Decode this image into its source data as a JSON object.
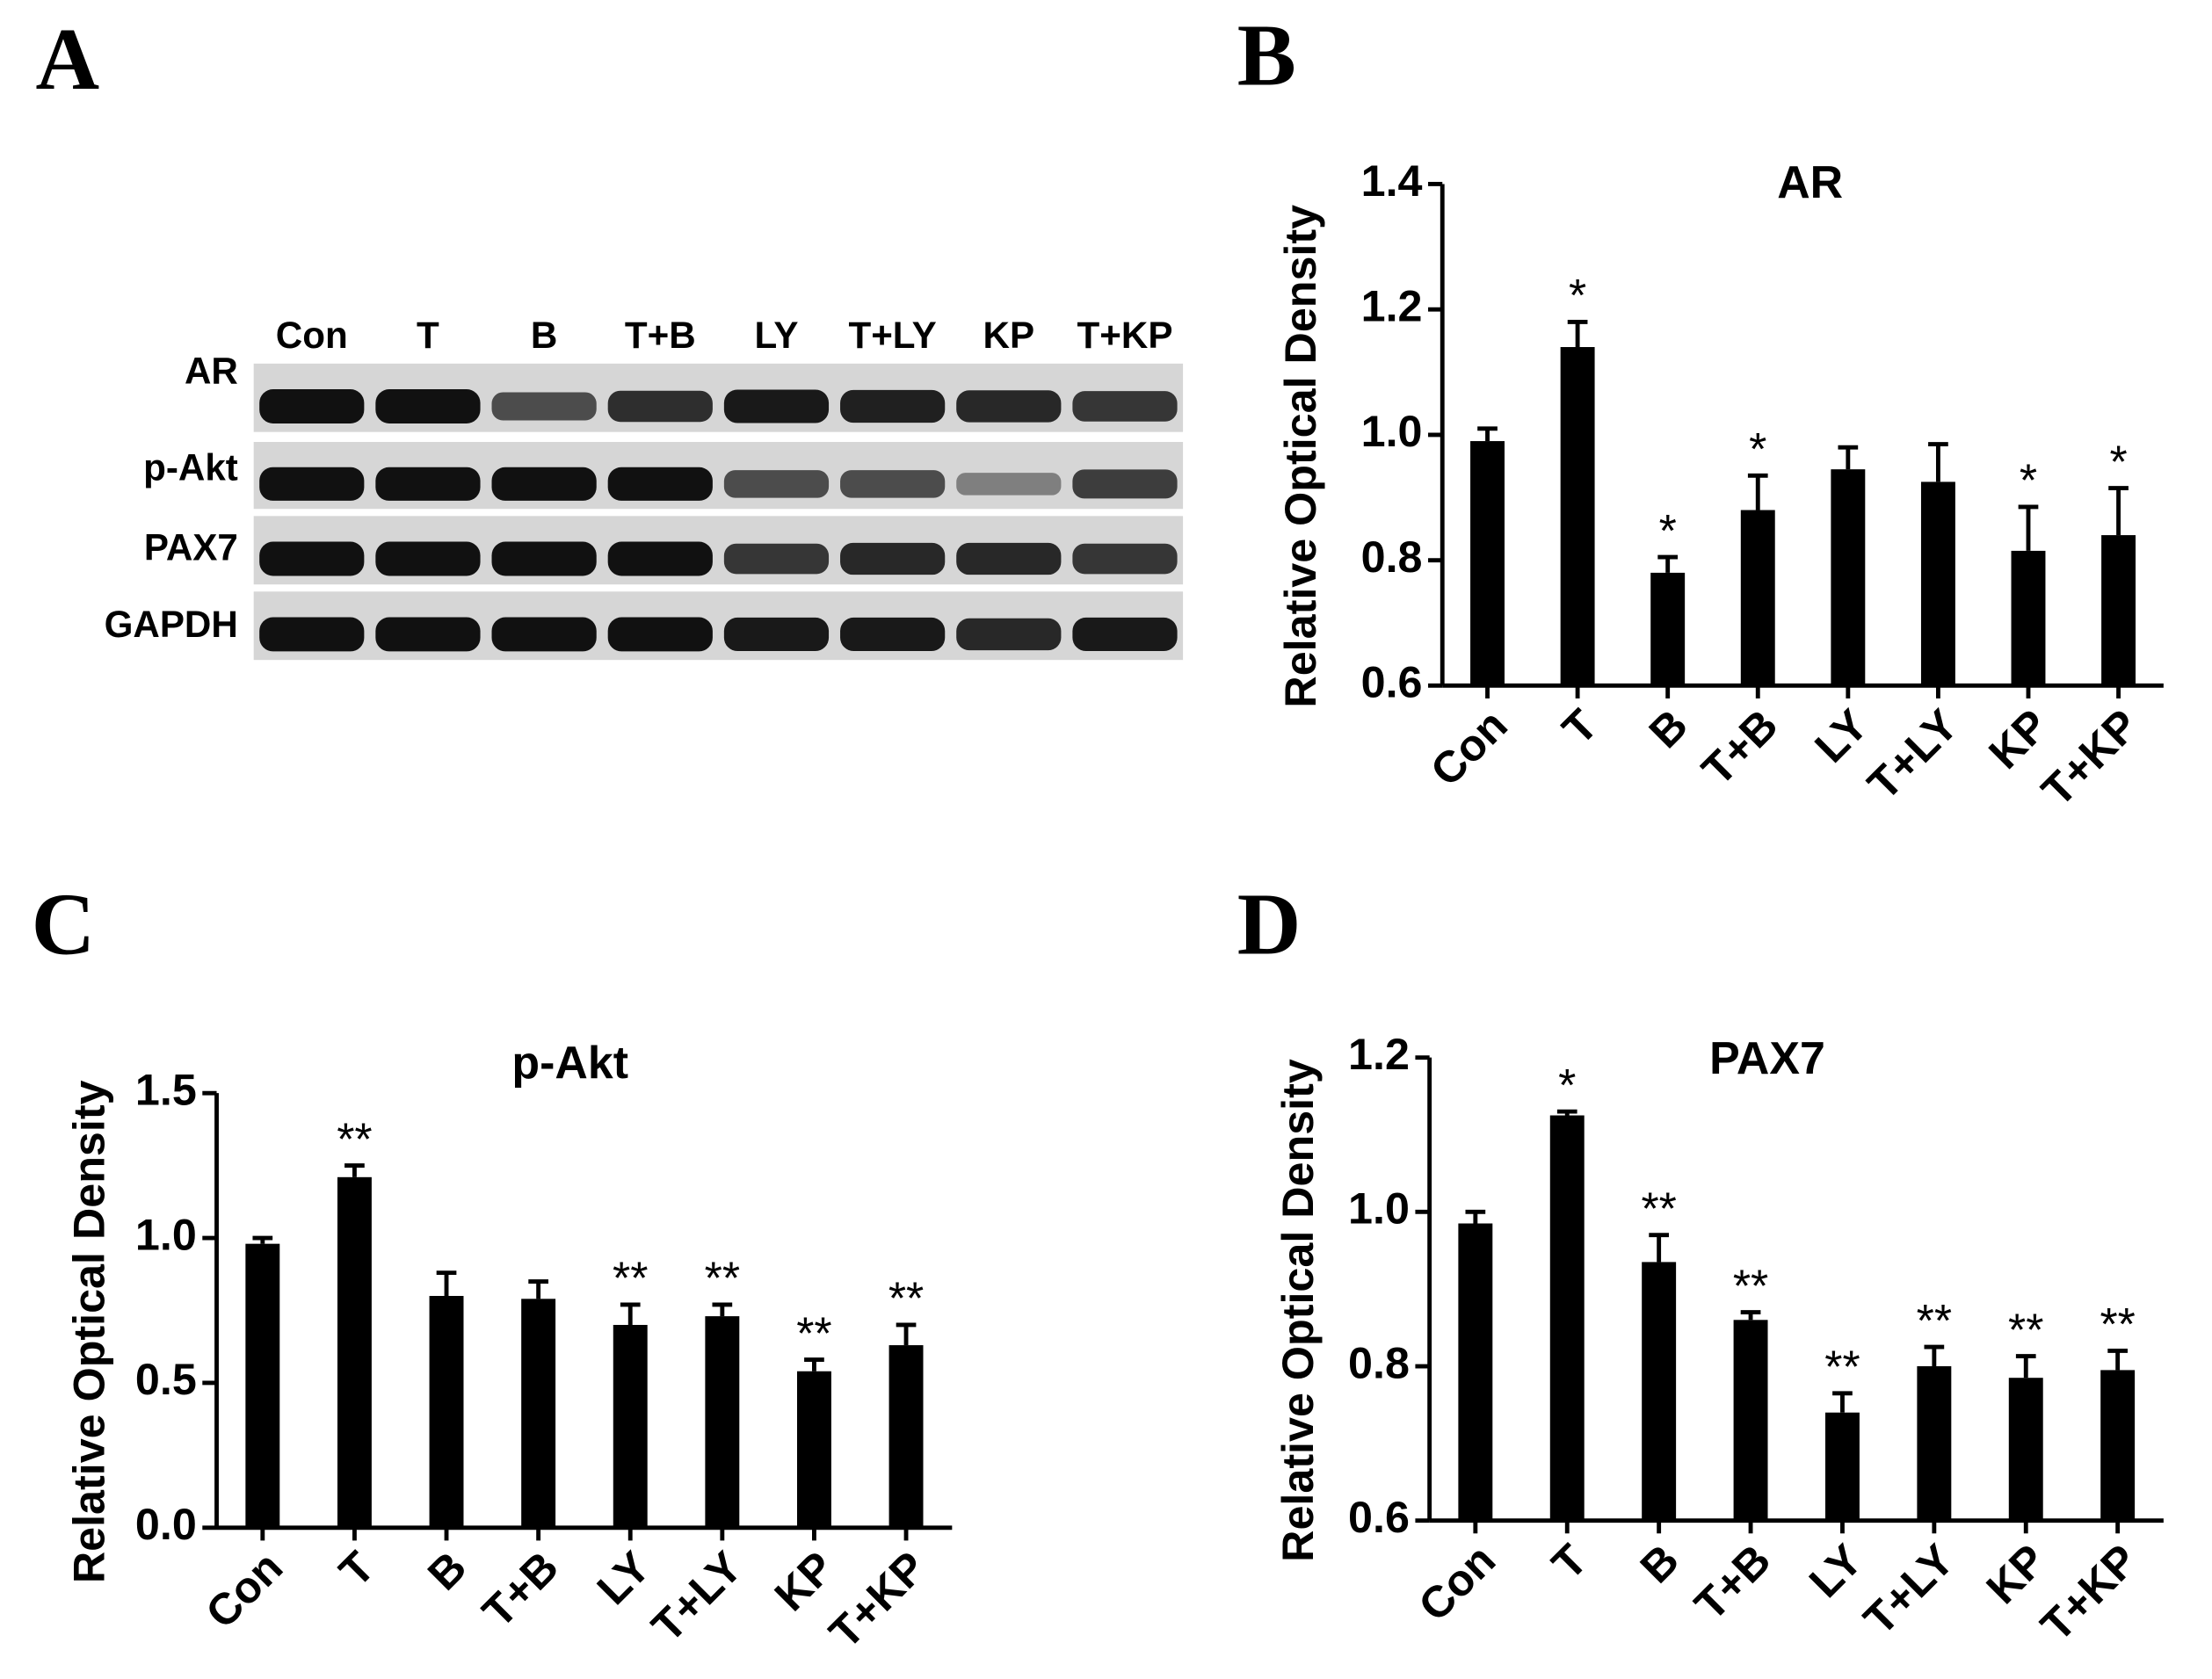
{
  "panels": [
    "A",
    "B",
    "C",
    "D"
  ],
  "blot": {
    "lanes": [
      "Con",
      "T",
      "B",
      "T+B",
      "LY",
      "T+LY",
      "KP",
      "T+KP"
    ],
    "proteins": [
      "AR",
      "p-Akt",
      "PAX7",
      "GAPDH"
    ]
  },
  "chart_data": [
    {
      "type": "bar",
      "title": "AR",
      "ylabel": "Relative Optical Density",
      "color": "#000000",
      "categories": [
        "Con",
        "T",
        "B",
        "T+B",
        "LY",
        "T+LY",
        "KP",
        "T+KP"
      ],
      "values": [
        0.99,
        1.14,
        0.78,
        0.88,
        0.945,
        0.925,
        0.815,
        0.84
      ],
      "errors": [
        0.02,
        0.04,
        0.025,
        0.055,
        0.035,
        0.06,
        0.07,
        0.075
      ],
      "annotations": [
        null,
        "*",
        "*",
        "*",
        null,
        null,
        "*",
        "*"
      ],
      "ylim": [
        0.6,
        1.4
      ],
      "yticks": [
        0.6,
        0.8,
        {
          "value": 1,
          "label": "1.0"
        },
        1.2,
        1.4
      ]
    },
    {
      "type": "bar",
      "title": "p-Akt",
      "ylabel": "Relative Optical Density",
      "color": "#000000",
      "categories": [
        "Con",
        "T",
        "B",
        "T+B",
        "LY",
        "T+LY",
        "KP",
        "T+KP"
      ],
      "values": [
        0.98,
        1.21,
        0.8,
        0.79,
        0.7,
        0.73,
        0.54,
        0.63
      ],
      "errors": [
        0.02,
        0.04,
        0.08,
        0.06,
        0.07,
        0.04,
        0.04,
        0.07
      ],
      "annotations": [
        null,
        "**",
        null,
        null,
        "**",
        "**",
        "**",
        "**"
      ],
      "ylim": [
        0,
        1.5
      ],
      "yticks": [
        {
          "value": 0,
          "label": "0.0"
        },
        0.5,
        {
          "value": 1,
          "label": "1.0"
        },
        1.5
      ]
    },
    {
      "type": "bar",
      "title": "PAX7",
      "ylabel": "Relative Optical Density",
      "color": "#000000",
      "categories": [
        "Con",
        "T",
        "B",
        "T+B",
        "LY",
        "T+LY",
        "KP",
        "T+KP"
      ],
      "values": [
        0.985,
        1.125,
        0.935,
        0.86,
        0.74,
        0.8,
        0.785,
        0.795
      ],
      "errors": [
        0.015,
        0.005,
        0.035,
        0.01,
        0.025,
        0.025,
        0.028,
        0.025
      ],
      "annotations": [
        null,
        "*",
        "**",
        "**",
        "**",
        "**",
        "**",
        "**"
      ],
      "ylim": [
        0.6,
        1.2
      ],
      "yticks": [
        0.6,
        0.8,
        {
          "value": 1,
          "label": "1.0"
        },
        1.2
      ]
    }
  ]
}
